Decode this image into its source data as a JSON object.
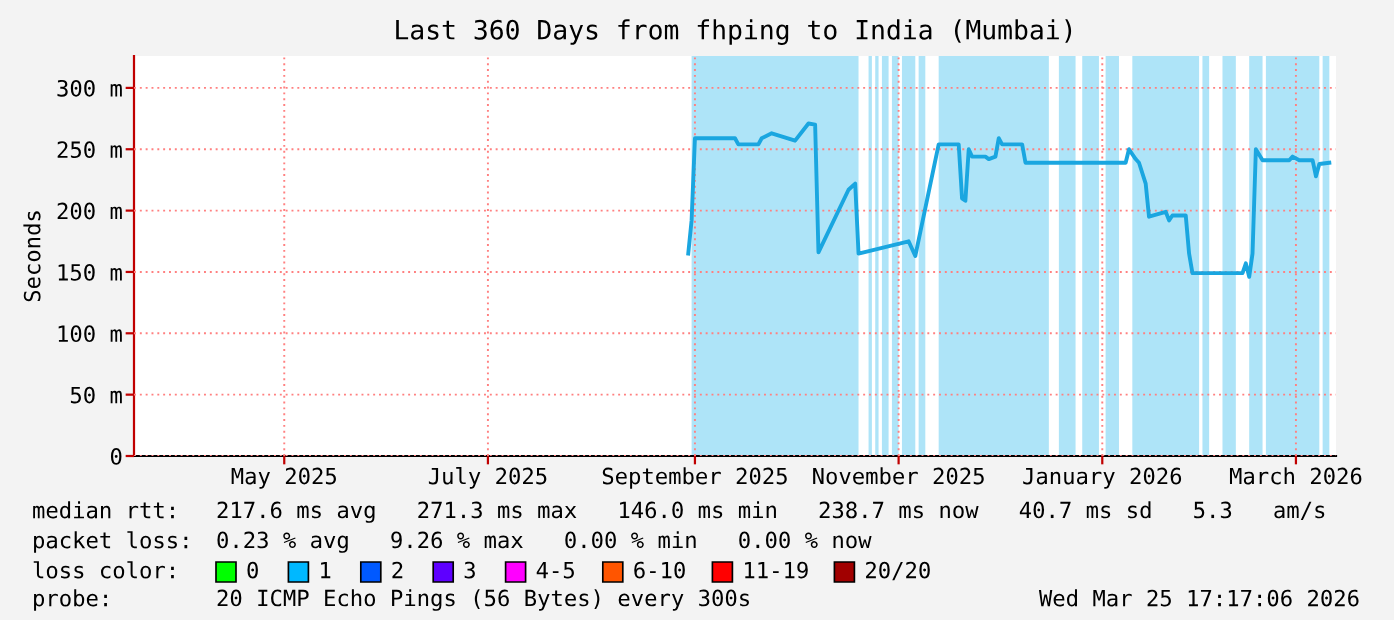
{
  "chart_data": {
    "type": "line",
    "title": "Last 360 Days from fhping to India (Mumbai)",
    "ylabel": "Seconds",
    "xlim": [
      "2025-04-01",
      "2026-03-27"
    ],
    "ylim": [
      0,
      326
    ],
    "xticks": [
      {
        "value": "2025-05-16",
        "label": "May 2025"
      },
      {
        "value": "2025-07-16",
        "label": "July 2025"
      },
      {
        "value": "2025-09-16",
        "label": "September 2025"
      },
      {
        "value": "2025-11-16",
        "label": "November 2025"
      },
      {
        "value": "2026-01-16",
        "label": "January 2026"
      },
      {
        "value": "2026-03-15",
        "label": "March 2026"
      }
    ],
    "yticks": [
      0,
      {
        "value": 50,
        "label": "50 m"
      },
      {
        "value": 100,
        "label": "100 m"
      },
      {
        "value": 150,
        "label": "150 m"
      },
      {
        "value": 200,
        "label": "200 m"
      },
      {
        "value": 250,
        "label": "250 m"
      },
      {
        "value": 300,
        "label": "300 m"
      }
    ],
    "grid": true,
    "legend": false,
    "series": [
      {
        "color": "#1aa6e0",
        "x": [
          "2025-09-14",
          "2025-09-15",
          "2025-09-16",
          "2025-09-28",
          "2025-09-29",
          "2025-10-05",
          "2025-10-06",
          "2025-10-09",
          "2025-10-16",
          "2025-10-20",
          "2025-10-22",
          "2025-10-23",
          "2025-11-01",
          "2025-11-03",
          "2025-11-04",
          "2025-11-19",
          "2025-11-21",
          "2025-11-28",
          "2025-12-04",
          "2025-12-05",
          "2025-12-06",
          "2025-12-07",
          "2025-12-08",
          "2025-12-12",
          "2025-12-13",
          "2025-12-15",
          "2025-12-16",
          "2025-12-17",
          "2025-12-23",
          "2025-12-24",
          "2026-01-23",
          "2026-01-24",
          "2026-01-26",
          "2026-01-27",
          "2026-01-29",
          "2026-01-30",
          "2026-02-04",
          "2026-02-05",
          "2026-02-06",
          "2026-02-10",
          "2026-02-11",
          "2026-02-12",
          "2026-02-27",
          "2026-02-28",
          "2026-03-01",
          "2026-03-02",
          "2026-03-03",
          "2026-03-05",
          "2026-03-13",
          "2026-03-14",
          "2026-03-16",
          "2026-03-20",
          "2026-03-21",
          "2026-03-22",
          "2026-03-25"
        ],
        "values": [
          165,
          192,
          259,
          259,
          254,
          254,
          259,
          263,
          257,
          271,
          270,
          166,
          217,
          222,
          165,
          175,
          163,
          254,
          254,
          210,
          208,
          250,
          244,
          244,
          242,
          244,
          259,
          254,
          254,
          239,
          239,
          250,
          242,
          239,
          222,
          195,
          199,
          192,
          196,
          196,
          165,
          149,
          149,
          157,
          146,
          165,
          250,
          241,
          241,
          244,
          241,
          241,
          228,
          238,
          239
        ]
      }
    ],
    "bands": [
      {
        "axis": "x",
        "from": "2025-09-15",
        "to": "2025-11-04",
        "color": "#aee4f8"
      },
      {
        "axis": "x",
        "from": "2025-11-07",
        "to": "2025-11-08",
        "color": "#aee4f8"
      },
      {
        "axis": "x",
        "from": "2025-11-09",
        "to": "2025-11-10",
        "color": "#aee4f8"
      },
      {
        "axis": "x",
        "from": "2025-11-11",
        "to": "2025-11-13",
        "color": "#aee4f8"
      },
      {
        "axis": "x",
        "from": "2025-11-14",
        "to": "2025-11-16",
        "color": "#aee4f8"
      },
      {
        "axis": "x",
        "from": "2025-11-17",
        "to": "2025-11-21",
        "color": "#aee4f8"
      },
      {
        "axis": "x",
        "from": "2025-11-22",
        "to": "2025-11-24",
        "color": "#aee4f8"
      },
      {
        "axis": "x",
        "from": "2025-11-28",
        "to": "2025-12-31",
        "color": "#aee4f8"
      },
      {
        "axis": "x",
        "from": "2026-01-03",
        "to": "2026-01-08",
        "color": "#aee4f8"
      },
      {
        "axis": "x",
        "from": "2026-01-10",
        "to": "2026-01-15",
        "color": "#aee4f8"
      },
      {
        "axis": "x",
        "from": "2026-01-17",
        "to": "2026-01-21",
        "color": "#aee4f8"
      },
      {
        "axis": "x",
        "from": "2026-01-25",
        "to": "2026-02-14",
        "color": "#aee4f8"
      },
      {
        "axis": "x",
        "from": "2026-02-15",
        "to": "2026-02-17",
        "color": "#aee4f8"
      },
      {
        "axis": "x",
        "from": "2026-02-21",
        "to": "2026-02-25",
        "color": "#aee4f8"
      },
      {
        "axis": "x",
        "from": "2026-03-01",
        "to": "2026-03-05",
        "color": "#aee4f8"
      },
      {
        "axis": "x",
        "from": "2026-03-06",
        "to": "2026-03-22",
        "color": "#aee4f8"
      },
      {
        "axis": "x",
        "from": "2026-03-23",
        "to": "2026-03-25",
        "color": "#aee4f8"
      }
    ],
    "annotations": [
      "median rtt:",
      "217.6 ms avg   271.3 ms max   146.0 ms min   238.7 ms now   40.7 ms sd   5.3   am/s",
      "packet loss:",
      "0.23 % avg   9.26 % max   0.00 % min   0.00 % now",
      "loss color:",
      "0",
      "1",
      "2",
      "3",
      "4-5",
      "6-10",
      "11-19",
      "20/20",
      "probe:",
      "20 ICMP Echo Pings (56 Bytes) every 300s",
      "Wed Mar 25 17:17:06 2026"
    ]
  }
}
